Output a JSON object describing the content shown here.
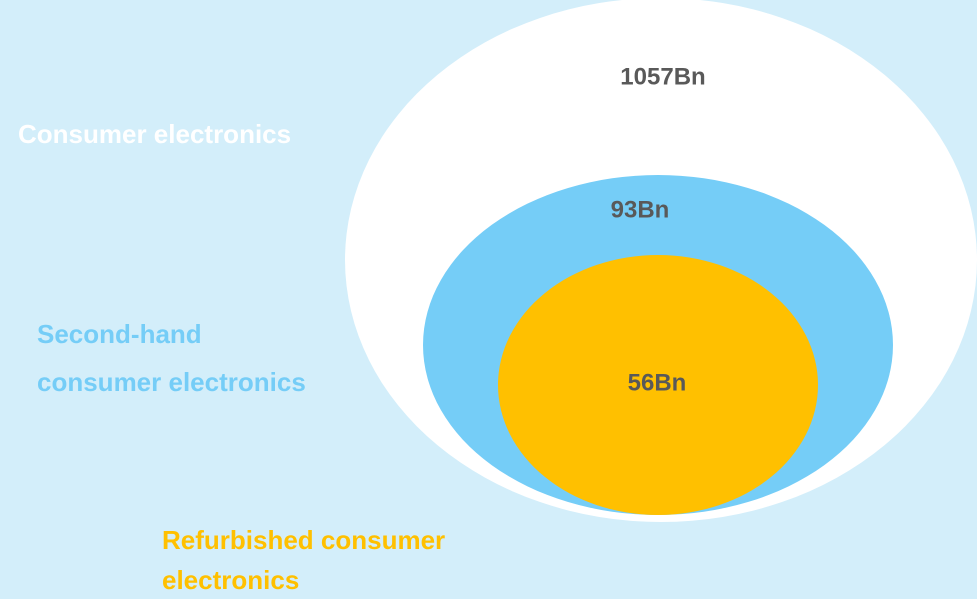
{
  "circles": [
    {
      "label": [
        "Consumer electronics"
      ],
      "value": "1057Bn"
    },
    {
      "label": [
        "Second-hand",
        "consumer electronics"
      ],
      "value": "93Bn"
    },
    {
      "label": [
        "Refurbished consumer",
        "electronics"
      ],
      "value": "56Bn"
    }
  ]
}
